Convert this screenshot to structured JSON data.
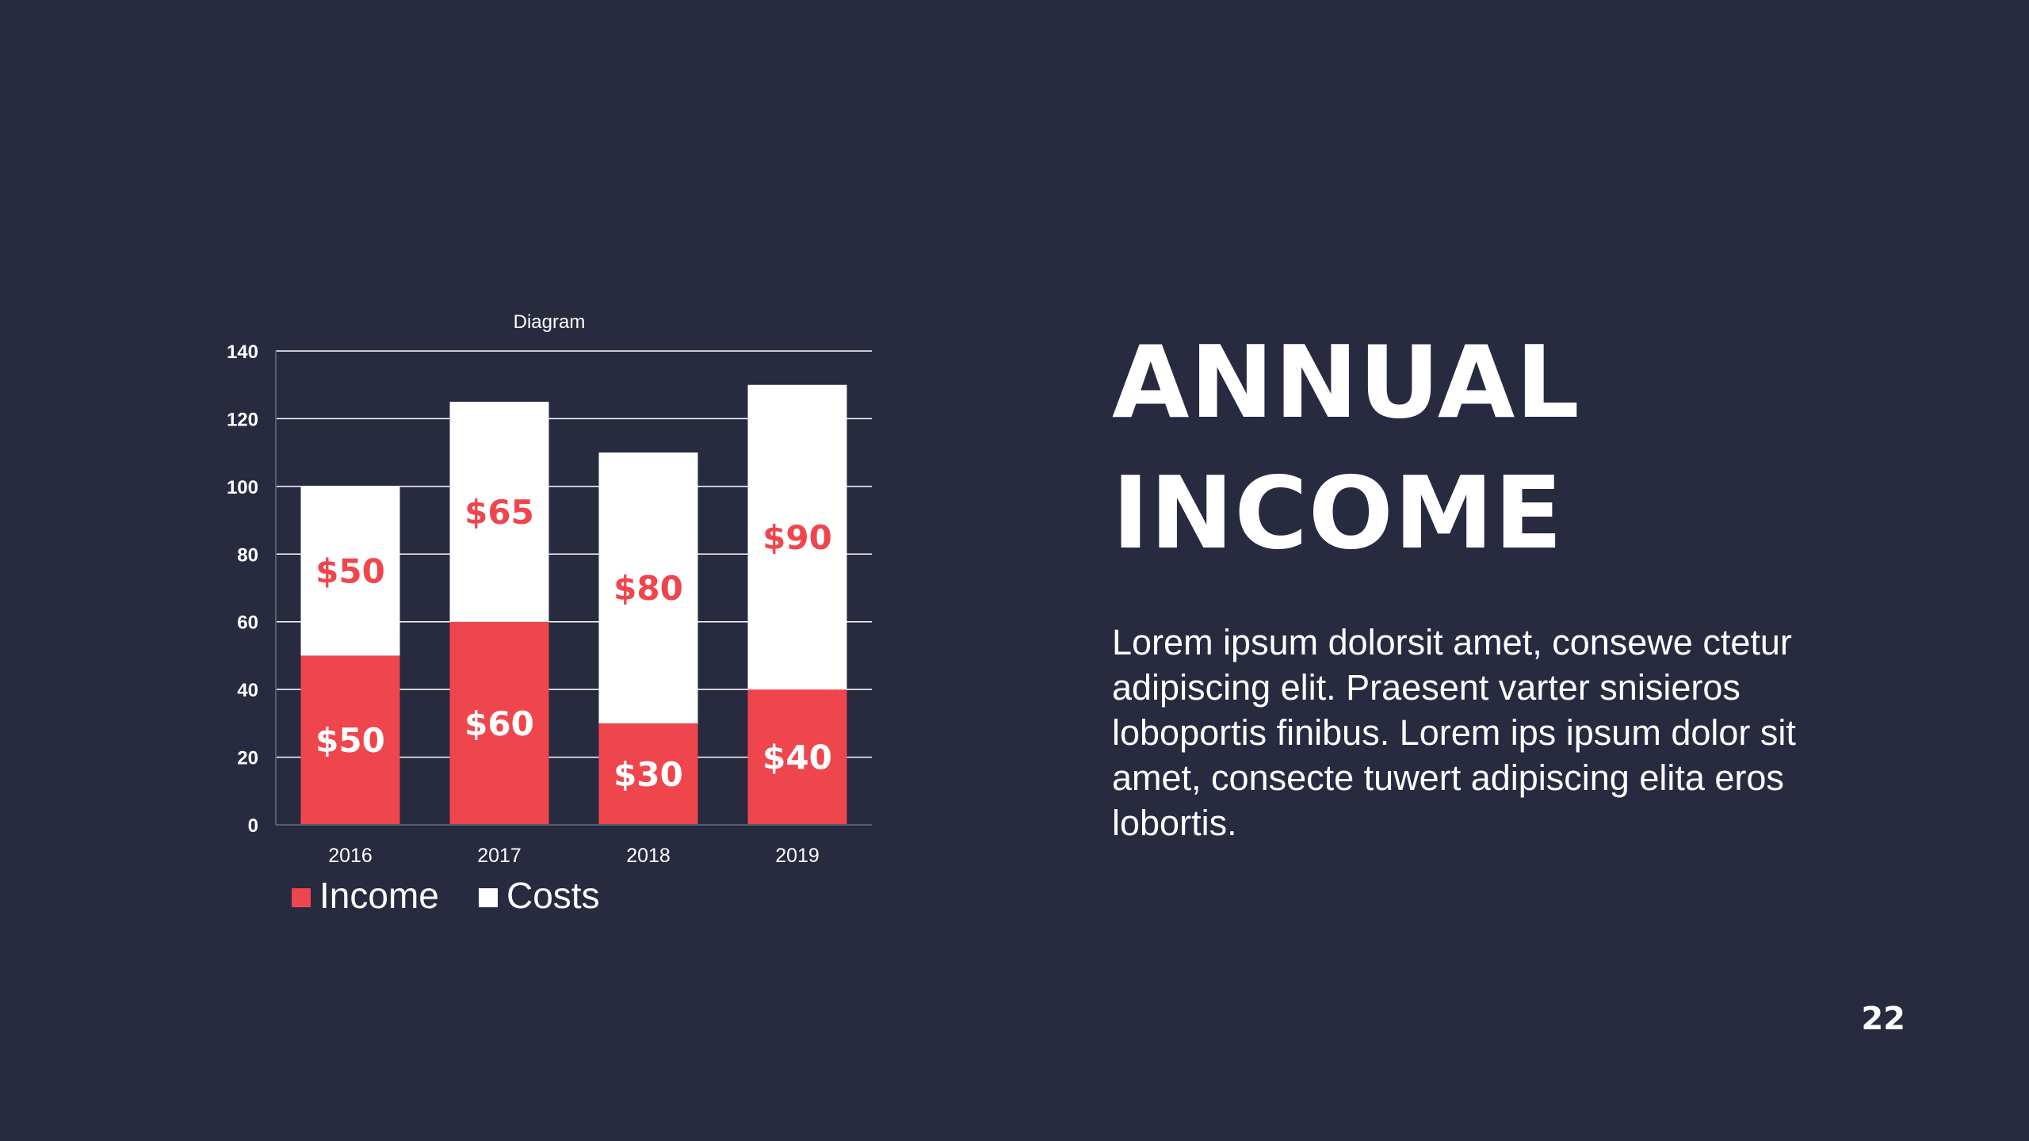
{
  "slide": {
    "title_line1": "ANNUAL",
    "title_line2": "INCOME",
    "body": "Lorem ipsum dolorsit amet, consewe ctetur adipiscing elit. Praesent varter snisieros loboportis finibus. Lorem ips ipsum dolor sit amet, consecte tuwert adipiscing elita eros lobortis.",
    "page_number": "22"
  },
  "colors": {
    "background": "#282a40",
    "income": "#ef464d",
    "costs": "#ffffff",
    "text": "#ffffff"
  },
  "chart_data": {
    "type": "bar",
    "stacked": true,
    "title": "Diagram",
    "categories": [
      "2016",
      "2017",
      "2018",
      "2019"
    ],
    "series": [
      {
        "name": "Income",
        "values": [
          50,
          60,
          30,
          40
        ],
        "labels": [
          "$50",
          "$60",
          "$30",
          "$40"
        ],
        "color": "#ef464d"
      },
      {
        "name": "Costs",
        "values": [
          50,
          65,
          80,
          90
        ],
        "labels": [
          "$50",
          "$65",
          "$80",
          "$90"
        ],
        "color": "#ffffff"
      }
    ],
    "ylim": [
      0,
      140
    ],
    "yticks": [
      0,
      20,
      40,
      60,
      80,
      100,
      120,
      140
    ],
    "grid": true,
    "legend_position": "bottom-left"
  }
}
